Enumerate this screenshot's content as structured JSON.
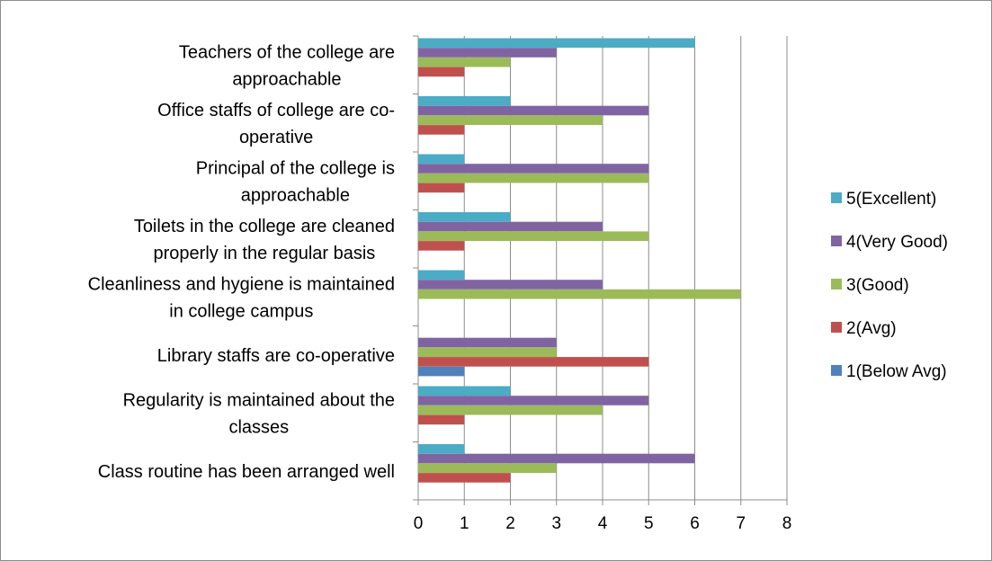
{
  "chart_data": {
    "type": "bar",
    "orientation": "horizontal",
    "title": "",
    "xlabel": "",
    "ylabel": "",
    "xlim": [
      0,
      8
    ],
    "x_ticks": [
      "0",
      "1",
      "2",
      "3",
      "4",
      "5",
      "6",
      "7",
      "8"
    ],
    "grid": true,
    "legend_position": "right",
    "categories": [
      [
        "Teachers of the college are",
        "approachable"
      ],
      [
        "Office staffs of college are co-",
        "operative"
      ],
      [
        "Principal of the college is",
        "approachable"
      ],
      [
        "Toilets in the college are cleaned",
        "properly in the regular basis"
      ],
      [
        "Cleanliness and hygiene is maintained",
        "in college campus"
      ],
      [
        "Library staffs are co-operative"
      ],
      [
        "Regularity is maintained about the",
        "classes"
      ],
      [
        "Class routine has been arranged well"
      ]
    ],
    "series": [
      {
        "name": "5(Excellent)",
        "color": "#4bacc6",
        "values": [
          6,
          2,
          1,
          2,
          1,
          0,
          2,
          1
        ]
      },
      {
        "name": "4(Very Good)",
        "color": "#8064a2",
        "values": [
          3,
          5,
          5,
          4,
          4,
          3,
          5,
          6
        ]
      },
      {
        "name": "3(Good)",
        "color": "#9bbb59",
        "values": [
          2,
          4,
          5,
          5,
          7,
          3,
          4,
          3
        ]
      },
      {
        "name": "2(Avg)",
        "color": "#c0504d",
        "values": [
          1,
          1,
          1,
          1,
          0,
          5,
          1,
          2
        ]
      },
      {
        "name": "1(Below Avg)",
        "color": "#4f81bd",
        "values": [
          0,
          0,
          0,
          0,
          0,
          1,
          0,
          0
        ]
      }
    ]
  }
}
